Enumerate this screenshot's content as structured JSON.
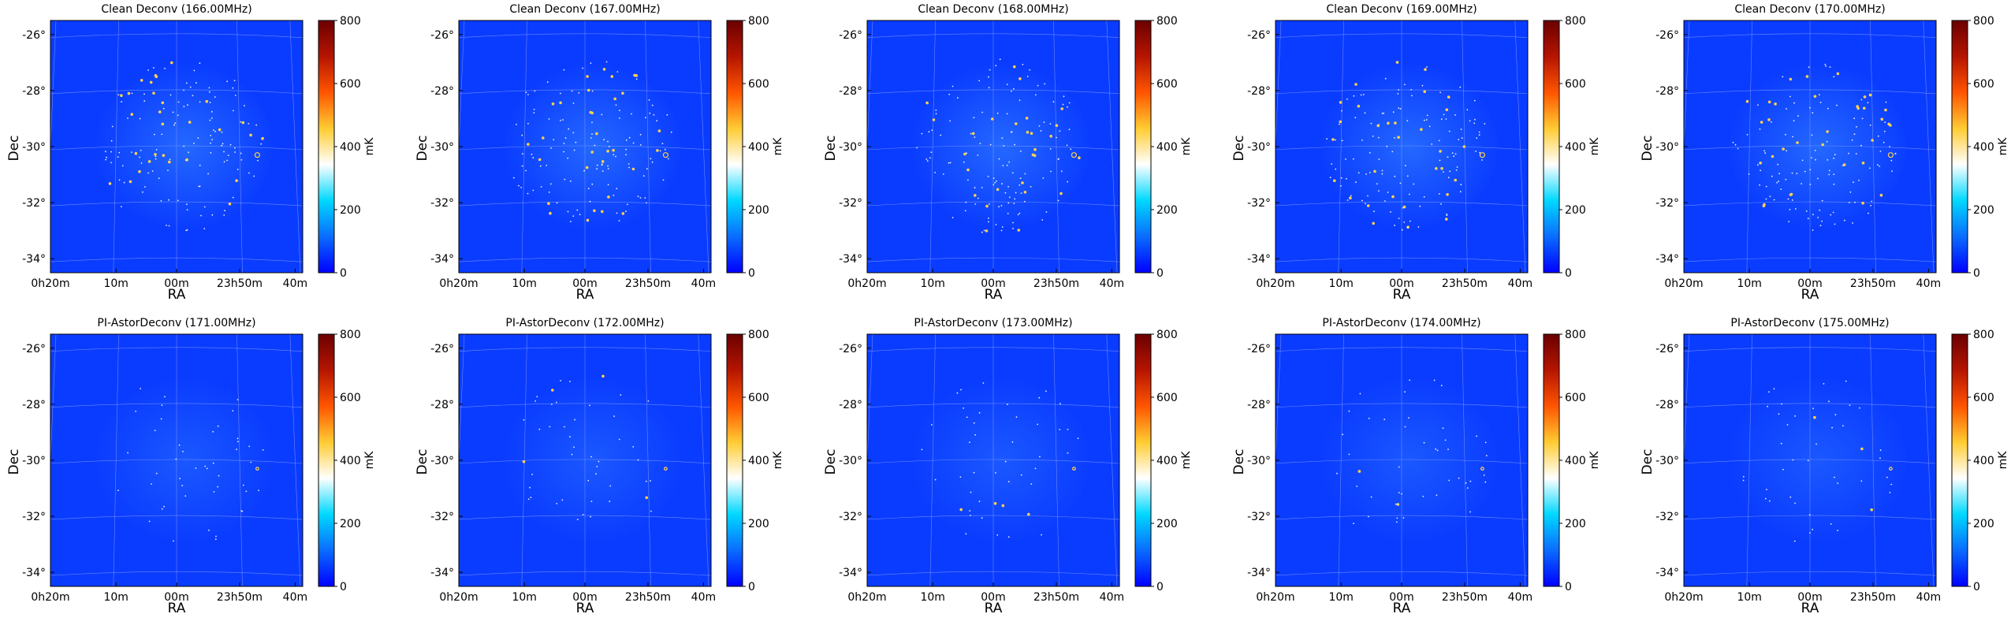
{
  "figure": {
    "panels": [
      {
        "title": "Clean Deconv (166.00MHz)",
        "kind": "clean"
      },
      {
        "title": "Clean Deconv (167.00MHz)",
        "kind": "clean"
      },
      {
        "title": "Clean Deconv (168.00MHz)",
        "kind": "clean"
      },
      {
        "title": "Clean Deconv (169.00MHz)",
        "kind": "clean"
      },
      {
        "title": "Clean Deconv (170.00MHz)",
        "kind": "clean"
      },
      {
        "title": "PI-AstorDeconv (171.00MHz)",
        "kind": "astor"
      },
      {
        "title": "PI-AstorDeconv (172.00MHz)",
        "kind": "astor"
      },
      {
        "title": "PI-AstorDeconv (173.00MHz)",
        "kind": "astor"
      },
      {
        "title": "PI-AstorDeconv (174.00MHz)",
        "kind": "astor"
      },
      {
        "title": "PI-AstorDeconv (175.00MHz)",
        "kind": "astor"
      }
    ],
    "xlabel": "RA",
    "ylabel": "Dec",
    "colorbar_unit": "mK"
  },
  "chart_data": {
    "type": "heatmap",
    "layout": "2 rows x 5 columns",
    "xlabel": "RA",
    "ylabel": "Dec",
    "x_tick_labels": [
      "0h20m",
      "10m",
      "00m",
      "23h50m",
      "40m"
    ],
    "y_tick_labels": [
      "-26°",
      "-28°",
      "-30°",
      "-32°",
      "-34°"
    ],
    "y_ticks": [
      -26,
      -28,
      -30,
      -32,
      -34
    ],
    "ylim": [
      -34.5,
      -25.5
    ],
    "colorbar": {
      "label": "mK",
      "range": [
        0,
        800
      ],
      "ticks": [
        0,
        200,
        400,
        600,
        800
      ],
      "colormap": [
        "#0000ff",
        "#0a6cff",
        "#00d8ff",
        "#ffffff",
        "#ffcc33",
        "#ff5500",
        "#b51500",
        "#6b0000"
      ]
    },
    "grid": true,
    "background_color": "#0a3cff",
    "source_marker_color": "#ffd24a",
    "rows": [
      {
        "method": "Clean Deconv",
        "frequencies_mhz": [
          166,
          167,
          168,
          169,
          170
        ]
      },
      {
        "method": "PI-AstorDeconv",
        "frequencies_mhz": [
          171,
          172,
          173,
          174,
          175
        ]
      }
    ]
  }
}
